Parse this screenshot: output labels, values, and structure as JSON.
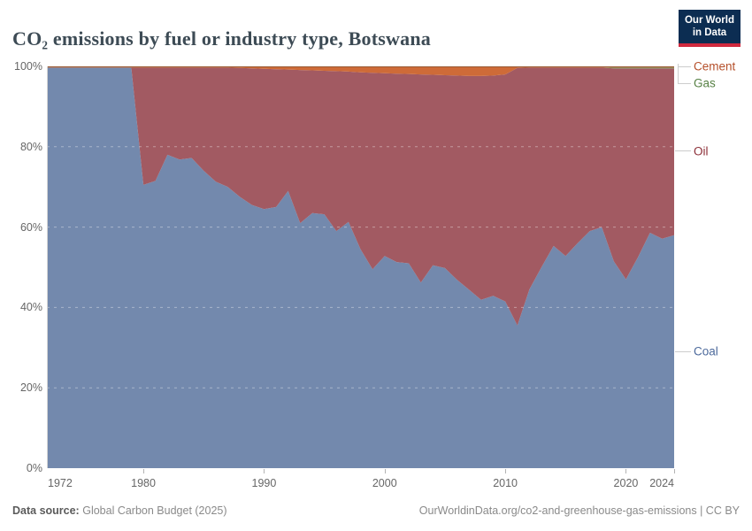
{
  "header": {
    "title": "CO₂ emissions by fuel or industry type, Botswana",
    "logo": {
      "line1": "Our World",
      "line2": "in Data"
    }
  },
  "footer": {
    "source_label": "Data source:",
    "source_value": "Global Carbon Budget (2025)",
    "credit": "OurWorldinData.org/co2-and-greenhouse-gas-emissions | CC BY"
  },
  "colors": {
    "title_text": "#3d4b55",
    "axis_text": "#666666",
    "footer_text": "#8a8a8a",
    "footer_text_bold": "#5b5b5b",
    "logo_background": "#0c2d52",
    "logo_stripe": "#d0293e",
    "legend_connector": "#cccccc",
    "gridline": "#ffffff"
  },
  "legend": {
    "position": "right",
    "items": [
      "Cement",
      "Gas",
      "Oil",
      "Coal"
    ]
  },
  "chart_data": {
    "type": "area",
    "stacked": true,
    "normalized_percent": true,
    "title": "CO₂ emissions by fuel or industry type, Botswana",
    "xlabel": "",
    "ylabel": "",
    "ylim": [
      0,
      100
    ],
    "grid": true,
    "legend_position": "right",
    "y_ticks": [
      {
        "v": 0,
        "label": "0%"
      },
      {
        "v": 20,
        "label": "20%"
      },
      {
        "v": 40,
        "label": "40%"
      },
      {
        "v": 60,
        "label": "60%"
      },
      {
        "v": 80,
        "label": "80%"
      },
      {
        "v": 100,
        "label": "100%"
      }
    ],
    "x_tick_labels": [
      1972,
      1980,
      1990,
      2000,
      2010,
      2020,
      2024
    ],
    "x": [
      1972,
      1973,
      1974,
      1975,
      1976,
      1977,
      1978,
      1979,
      1980,
      1981,
      1982,
      1983,
      1984,
      1985,
      1986,
      1987,
      1988,
      1989,
      1990,
      1991,
      1992,
      1993,
      1994,
      1995,
      1996,
      1997,
      1998,
      1999,
      2000,
      2001,
      2002,
      2003,
      2004,
      2005,
      2006,
      2007,
      2008,
      2009,
      2010,
      2011,
      2012,
      2013,
      2014,
      2015,
      2016,
      2017,
      2018,
      2019,
      2020,
      2021,
      2022,
      2023,
      2024
    ],
    "series": [
      {
        "name": "Coal",
        "color": "#7389ad",
        "label_color": "#4d6a9c",
        "values": [
          99.7,
          99.7,
          99.7,
          99.7,
          99.7,
          99.7,
          99.7,
          99.7,
          70.5,
          71.5,
          78,
          76.8,
          77.2,
          74,
          71.3,
          70,
          67.5,
          65.5,
          64.5,
          65,
          69,
          61,
          63.5,
          63.2,
          59,
          61.3,
          54.5,
          49.5,
          52.8,
          51.3,
          51,
          46.2,
          50.5,
          49.8,
          46.9,
          44.4,
          41.9,
          42.9,
          41.5,
          35.5,
          44.5,
          50,
          55.3,
          52.8,
          56,
          59,
          60,
          51.5,
          47,
          52.5,
          58.6,
          57.1,
          58
        ]
      },
      {
        "name": "Oil",
        "color": "#a25a62",
        "label_color": "#8d3039",
        "values": [
          0,
          0,
          0,
          0,
          0,
          0,
          0,
          0,
          29.2,
          28.2,
          21.7,
          22.9,
          22.5,
          25.7,
          28.4,
          29.7,
          32.1,
          34.0,
          34.9,
          34.3,
          30.2,
          38.1,
          35.5,
          35.7,
          39.8,
          37.4,
          44.0,
          48.9,
          45.5,
          46.9,
          47.1,
          51.8,
          47.4,
          48.0,
          50.8,
          53.2,
          55.7,
          54.8,
          56.5,
          64.1,
          55.2,
          49.7,
          44.4,
          46.9,
          43.7,
          40.7,
          39.7,
          48.0,
          52.5,
          47.0,
          40.9,
          42.4,
          41.5
        ]
      },
      {
        "name": "Gas",
        "color": "#63975a",
        "label_color": "#578145",
        "values": [
          0,
          0,
          0,
          0,
          0,
          0,
          0,
          0,
          0,
          0,
          0,
          0,
          0,
          0,
          0,
          0,
          0,
          0,
          0,
          0,
          0,
          0,
          0,
          0,
          0,
          0,
          0,
          0,
          0,
          0,
          0,
          0,
          0,
          0,
          0,
          0,
          0,
          0,
          0,
          0,
          0,
          0,
          0,
          0,
          0,
          0,
          0,
          0.2,
          0.2,
          0.2,
          0.2,
          0.2,
          0.2
        ]
      },
      {
        "name": "Cement",
        "color": "#ce6b38",
        "label_color": "#b5502b",
        "values": [
          0.3,
          0.3,
          0.3,
          0.3,
          0.3,
          0.3,
          0.3,
          0.3,
          0.3,
          0.3,
          0.3,
          0.3,
          0.3,
          0.3,
          0.3,
          0.3,
          0.4,
          0.5,
          0.6,
          0.7,
          0.8,
          0.9,
          1.0,
          1.1,
          1.2,
          1.3,
          1.5,
          1.6,
          1.7,
          1.8,
          1.9,
          2.0,
          2.1,
          2.2,
          2.3,
          2.4,
          2.4,
          2.3,
          2.0,
          0.4,
          0.3,
          0.3,
          0.3,
          0.3,
          0.3,
          0.3,
          0.3,
          0.3,
          0.3,
          0.3,
          0.3,
          0.3,
          0.3
        ]
      }
    ]
  }
}
